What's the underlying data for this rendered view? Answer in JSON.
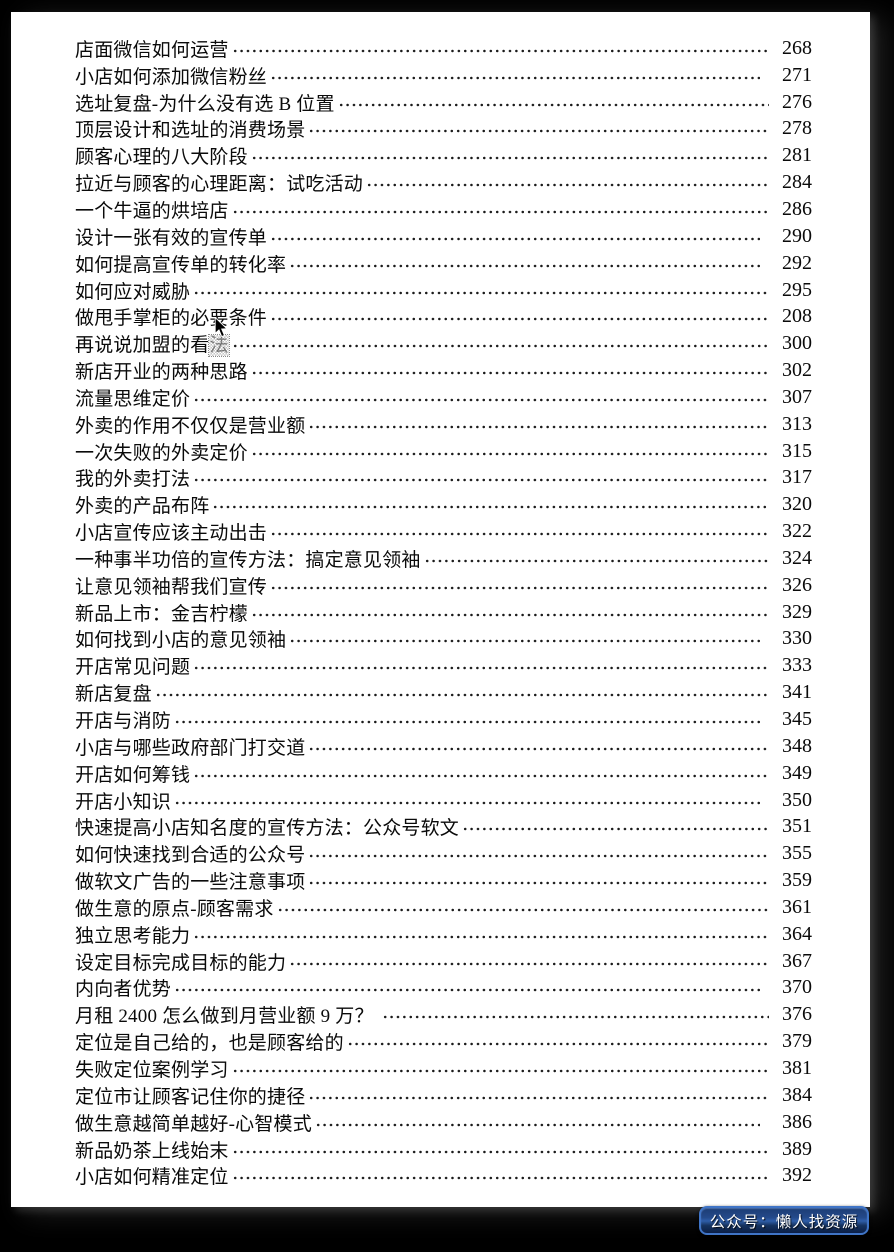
{
  "toc": {
    "entries": [
      {
        "title": "店面微信如何运营",
        "page": "268"
      },
      {
        "title": "小店如何添加微信粉丝",
        "page": "271",
        "gap": true
      },
      {
        "title": "选址复盘-为什么没有选 B 位置",
        "page": "276"
      },
      {
        "title": "顶层设计和选址的消费场景",
        "page": "278"
      },
      {
        "title": "顾客心理的八大阶段",
        "page": "281"
      },
      {
        "title": "拉近与顾客的心理距离：试吃活动",
        "page": "284"
      },
      {
        "title": "一个牛逼的烘培店",
        "page": "286"
      },
      {
        "title": "设计一张有效的宣传单",
        "page": "290",
        "gap": true
      },
      {
        "title": "如何提高宣传单的转化率",
        "page": "292",
        "gap": true
      },
      {
        "title": "如何应对威胁",
        "page": "295"
      },
      {
        "title": "做甩手掌柜的必要条件",
        "page": "208"
      },
      {
        "title": "再说说加盟的看法",
        "title_prefix": "再说说加盟的看",
        "selected_char": "法",
        "page": "300"
      },
      {
        "title": "新店开业的两种思路",
        "page": "302"
      },
      {
        "title": "流量思维定价",
        "page": "307"
      },
      {
        "title": "外卖的作用不仅仅是营业额",
        "page": "313"
      },
      {
        "title": "一次失败的外卖定价",
        "page": "315"
      },
      {
        "title": "我的外卖打法",
        "page": "317"
      },
      {
        "title": "外卖的产品布阵",
        "page": "320"
      },
      {
        "title": "小店宣传应该主动出击",
        "page": "322"
      },
      {
        "title": "一种事半功倍的宣传方法：搞定意见领袖",
        "page": "324"
      },
      {
        "title": "让意见领袖帮我们宣传",
        "page": "326"
      },
      {
        "title": "新品上市：金吉柠檬",
        "page": "329"
      },
      {
        "title": "如何找到小店的意见领袖",
        "page": "330",
        "gap": true
      },
      {
        "title": "开店常见问题",
        "page": "333"
      },
      {
        "title": "新店复盘",
        "page": "341"
      },
      {
        "title": "开店与消防",
        "page": "345",
        "gap": true
      },
      {
        "title": "小店与哪些政府部门打交道",
        "page": "348"
      },
      {
        "title": "开店如何筹钱",
        "page": "349"
      },
      {
        "title": "开店小知识",
        "page": "350",
        "gap": true
      },
      {
        "title": "快速提高小店知名度的宣传方法：公众号软文",
        "page": "351"
      },
      {
        "title": "如何快速找到合适的公众号",
        "page": "355"
      },
      {
        "title": "做软文广告的一些注意事项",
        "page": "359"
      },
      {
        "title": "做生意的原点-顾客需求",
        "page": "361"
      },
      {
        "title": "独立思考能力",
        "page": "364"
      },
      {
        "title": "设定目标完成目标的能力",
        "page": "367"
      },
      {
        "title": "内向者优势",
        "page": "370",
        "gap": true
      },
      {
        "title": "月租 2400 怎么做到月营业额 9 万？ ",
        "page": "376"
      },
      {
        "title": "定位是自己给的，也是顾客给的",
        "page": "379"
      },
      {
        "title": "失败定位案例学习",
        "page": "381"
      },
      {
        "title": "定位市让顾客记住你的捷径",
        "page": "384"
      },
      {
        "title": "做生意越简单越好-心智模式",
        "page": "386",
        "gap": true
      },
      {
        "title": "新品奶茶上线始末",
        "page": "389"
      },
      {
        "title": "小店如何精准定位",
        "page": "392"
      }
    ]
  },
  "watermark": {
    "label": "公众号：懒人找资源",
    "border_color": "#3f74c6",
    "bg_top": "#1c3c74",
    "bg_mid": "#2f5ea9",
    "bg_bottom": "#0b1f47",
    "text_color": "#ffffff"
  },
  "colors": {
    "frame_bg": "#000000",
    "page_bg": "#ffffff",
    "text": "#0a0a0a"
  },
  "cursor": {
    "icon": "arrow-pointer"
  }
}
